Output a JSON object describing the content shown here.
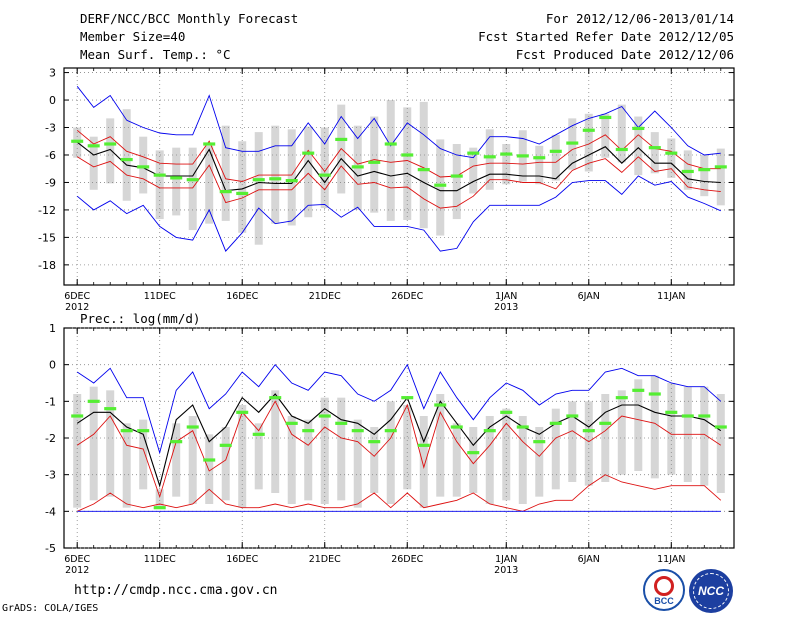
{
  "header": {
    "title": "DERF/NCC/BCC Monthly Forecast",
    "member_size": "Member Size=40",
    "variable": "Mean Surf. Temp.: °C",
    "for_period": "For 2012/12/06-2013/01/14",
    "fcst_started": "Fcst Started Refer Date 2012/12/05",
    "fcst_produced": "Fcst Produced Date 2012/12/06"
  },
  "footer": {
    "url": "http://cmdp.ncc.cma.gov.cn",
    "credit": "GrADS: COLA/IGES",
    "logo_left_text": "BCC",
    "logo_right_text": "NCC"
  },
  "colors": {
    "box": "#d6d6d6",
    "median": "#55ee33",
    "mean": "#000000",
    "inner": "#dd1111",
    "outer": "#0000ee"
  },
  "chart_data": [
    {
      "type": "line",
      "title": "Mean Surf. Temp.: °C",
      "x": [
        1,
        2,
        3,
        4,
        5,
        6,
        7,
        8,
        9,
        10,
        11,
        12,
        13,
        14,
        15,
        16,
        17,
        18,
        19,
        20,
        21,
        22,
        23,
        24,
        25,
        26,
        27,
        28,
        29,
        30,
        31,
        32,
        33,
        34,
        35,
        36,
        37,
        38,
        39,
        40
      ],
      "xlim": [
        0.2,
        40.8
      ],
      "ylim": [
        -20.2,
        3.5
      ],
      "yticks": [
        3,
        0,
        -3,
        -6,
        -9,
        -12,
        -15,
        -18
      ],
      "xticks": [
        {
          "x": 1,
          "label": "6DEC",
          "sub": "2012"
        },
        {
          "x": 6,
          "label": "11DEC",
          "sub": ""
        },
        {
          "x": 11,
          "label": "16DEC",
          "sub": ""
        },
        {
          "x": 16,
          "label": "21DEC",
          "sub": ""
        },
        {
          "x": 21,
          "label": "26DEC",
          "sub": ""
        },
        {
          "x": 27,
          "label": "1JAN",
          "sub": "2013"
        },
        {
          "x": 32,
          "label": "6JAN",
          "sub": ""
        },
        {
          "x": 37,
          "label": "11JAN",
          "sub": ""
        }
      ],
      "box_low": [
        -6.3,
        -9.8,
        -9.1,
        -11.0,
        -10.2,
        -13.0,
        -12.6,
        -14.2,
        -13.5,
        -13.2,
        -14.5,
        -15.8,
        -13.5,
        -13.7,
        -12.8,
        -11.8,
        -10.2,
        -12.0,
        -12.3,
        -13.2,
        -13.1,
        -14.0,
        -14.8,
        -13.0,
        -10.2,
        -9.8,
        -9.2,
        -8.9,
        -9.2,
        -8.8,
        -7.6,
        -7.8,
        -6.3,
        -6.8,
        -8.2,
        -8.0,
        -8.5,
        -9.8,
        -10.5,
        -11.5
      ],
      "box_high": [
        -3.0,
        -4.0,
        -2.0,
        -1.0,
        -4.0,
        -5.5,
        -5.2,
        -5.2,
        -5.0,
        -2.8,
        -4.5,
        -3.5,
        -2.8,
        -3.2,
        -2.9,
        -3.0,
        -0.5,
        -2.8,
        -1.8,
        0.0,
        -0.8,
        -0.2,
        -4.3,
        -4.8,
        -5.2,
        -3.2,
        -4.8,
        -3.3,
        -5.0,
        -3.8,
        -2.0,
        -1.5,
        -1.5,
        -0.5,
        -1.8,
        -3.5,
        -4.2,
        -5.5,
        -6.0,
        -5.3
      ],
      "median": [
        -4.5,
        -5.0,
        -4.8,
        -6.5,
        -7.3,
        -8.2,
        -8.5,
        -8.7,
        -4.8,
        -10.0,
        -10.2,
        -8.7,
        -8.6,
        -8.8,
        -5.8,
        -8.2,
        -4.3,
        -7.3,
        -6.8,
        -4.8,
        -6.0,
        -7.6,
        -9.3,
        -8.3,
        -5.8,
        -6.2,
        -5.9,
        -6.1,
        -6.3,
        -5.6,
        -4.7,
        -3.3,
        -1.9,
        -5.4,
        -3.1,
        -5.2,
        -5.8,
        -7.8,
        -7.6,
        -7.3
      ],
      "series": [
        {
          "name": "ensemble max",
          "color": "#0000ee",
          "values": [
            1.5,
            -0.8,
            0.5,
            -2.2,
            -3.0,
            -3.6,
            -3.8,
            -3.8,
            0.5,
            -5.2,
            -5.6,
            -5.6,
            -5.0,
            -5.0,
            -2.5,
            -4.8,
            -1.8,
            -4.2,
            -2.0,
            -5.0,
            -2.5,
            -3.8,
            -5.3,
            -6.0,
            -6.3,
            -4.0,
            -4.0,
            -4.2,
            -4.8,
            -3.8,
            -2.8,
            -2.0,
            -1.5,
            -0.7,
            -3.0,
            -1.2,
            -3.0,
            -5.0,
            -6.0,
            -5.8
          ]
        },
        {
          "name": "upper spread",
          "color": "#dd1111",
          "values": [
            -3.3,
            -4.8,
            -4.0,
            -5.6,
            -6.2,
            -6.9,
            -7.0,
            -7.0,
            -4.5,
            -8.6,
            -8.9,
            -8.2,
            -8.2,
            -8.2,
            -5.5,
            -7.8,
            -5.3,
            -7.0,
            -6.5,
            -6.8,
            -6.6,
            -7.4,
            -8.4,
            -8.3,
            -7.2,
            -6.9,
            -6.9,
            -7.0,
            -6.8,
            -6.8,
            -5.4,
            -4.8,
            -3.8,
            -5.5,
            -3.8,
            -5.3,
            -5.6,
            -7.0,
            -7.5,
            -7.5
          ]
        },
        {
          "name": "ensemble mean",
          "color": "#000000",
          "values": [
            -4.6,
            -6.0,
            -5.4,
            -7.1,
            -7.4,
            -8.3,
            -8.3,
            -8.3,
            -5.4,
            -9.9,
            -9.7,
            -9.0,
            -9.1,
            -9.1,
            -6.6,
            -9.0,
            -6.4,
            -8.3,
            -7.8,
            -8.3,
            -8.0,
            -9.0,
            -9.9,
            -9.9,
            -8.9,
            -8.1,
            -8.1,
            -8.3,
            -8.3,
            -8.6,
            -6.9,
            -6.0,
            -5.1,
            -6.9,
            -5.2,
            -6.9,
            -6.9,
            -8.6,
            -8.9,
            -9.0
          ]
        },
        {
          "name": "lower spread",
          "color": "#dd1111",
          "values": [
            -6.2,
            -7.3,
            -6.7,
            -8.2,
            -8.6,
            -9.6,
            -9.6,
            -9.6,
            -7.1,
            -11.2,
            -10.7,
            -9.8,
            -9.8,
            -9.8,
            -8.0,
            -9.8,
            -7.2,
            -9.2,
            -9.0,
            -9.6,
            -9.5,
            -10.8,
            -11.8,
            -11.6,
            -10.5,
            -8.7,
            -8.7,
            -9.0,
            -9.0,
            -9.7,
            -7.7,
            -6.9,
            -6.4,
            -7.9,
            -6.2,
            -7.8,
            -7.5,
            -9.5,
            -9.8,
            -10.0
          ]
        },
        {
          "name": "ensemble min",
          "color": "#0000ee",
          "values": [
            -10.5,
            -12.0,
            -11.0,
            -12.4,
            -11.5,
            -13.8,
            -15.0,
            -15.3,
            -12.0,
            -16.5,
            -14.5,
            -11.8,
            -13.5,
            -13.2,
            -11.5,
            -11.4,
            -12.8,
            -11.7,
            -13.8,
            -13.8,
            -13.8,
            -14.2,
            -16.5,
            -16.2,
            -13.3,
            -11.5,
            -11.5,
            -11.5,
            -11.5,
            -10.6,
            -9.0,
            -8.8,
            -8.8,
            -10.3,
            -8.3,
            -9.3,
            -8.9,
            -10.6,
            -11.3,
            -12.1
          ]
        }
      ]
    },
    {
      "type": "line",
      "title": "Prec.: log(mm/d)",
      "x": [
        1,
        2,
        3,
        4,
        5,
        6,
        7,
        8,
        9,
        10,
        11,
        12,
        13,
        14,
        15,
        16,
        17,
        18,
        19,
        20,
        21,
        22,
        23,
        24,
        25,
        26,
        27,
        28,
        29,
        30,
        31,
        32,
        33,
        34,
        35,
        36,
        37,
        38,
        39,
        40
      ],
      "xlim": [
        0.2,
        40.8
      ],
      "ylim": [
        -5,
        1
      ],
      "yticks": [
        1,
        0,
        -1,
        -2,
        -3,
        -4,
        -5
      ],
      "xticks": [
        {
          "x": 1,
          "label": "6DEC",
          "sub": "2012"
        },
        {
          "x": 6,
          "label": "11DEC",
          "sub": ""
        },
        {
          "x": 11,
          "label": "16DEC",
          "sub": ""
        },
        {
          "x": 16,
          "label": "21DEC",
          "sub": ""
        },
        {
          "x": 21,
          "label": "26DEC",
          "sub": ""
        },
        {
          "x": 27,
          "label": "1JAN",
          "sub": "2013"
        },
        {
          "x": 32,
          "label": "6JAN",
          "sub": ""
        },
        {
          "x": 37,
          "label": "11JAN",
          "sub": ""
        }
      ],
      "box_low": [
        -3.9,
        -3.7,
        -3.6,
        -3.9,
        -3.4,
        -3.9,
        -3.6,
        -3.8,
        -3.8,
        -3.7,
        -3.9,
        -3.4,
        -3.5,
        -3.8,
        -3.7,
        -3.8,
        -3.7,
        -3.9,
        -3.5,
        -3.8,
        -3.4,
        -3.9,
        -3.6,
        -3.6,
        -3.5,
        -3.8,
        -3.7,
        -3.8,
        -3.6,
        -3.4,
        -3.2,
        -3.3,
        -3.2,
        -3.0,
        -2.9,
        -3.1,
        -3.0,
        -3.2,
        -3.3,
        -3.5
      ],
      "box_high": [
        -0.8,
        -0.6,
        -0.7,
        -1.6,
        -1.5,
        -3.4,
        -1.6,
        -1.4,
        -1.9,
        -1.7,
        -1.1,
        -1.6,
        -0.7,
        -1.4,
        -1.5,
        -0.9,
        -0.9,
        -1.5,
        -1.7,
        -1.0,
        -1.1,
        -1.4,
        -0.8,
        -1.6,
        -1.7,
        -1.4,
        -1.2,
        -1.4,
        -1.7,
        -1.2,
        -1.0,
        -1.0,
        -0.8,
        -0.7,
        -0.4,
        -0.3,
        -0.5,
        -0.6,
        -0.6,
        -0.8
      ],
      "median": [
        -1.4,
        -1.0,
        -1.2,
        -1.8,
        -1.8,
        -3.9,
        -2.1,
        -1.7,
        -2.6,
        -2.2,
        -1.3,
        -1.9,
        -0.9,
        -1.6,
        -1.8,
        -1.4,
        -1.6,
        -1.8,
        -2.1,
        -1.8,
        -0.9,
        -2.2,
        -1.1,
        -1.7,
        -2.4,
        -1.8,
        -1.3,
        -1.7,
        -2.1,
        -1.6,
        -1.4,
        -1.8,
        -1.6,
        -0.9,
        -0.7,
        -0.8,
        -1.3,
        -1.4,
        -1.4,
        -1.7
      ],
      "series": [
        {
          "name": "ensemble max",
          "color": "#0000ee",
          "values": [
            -0.2,
            -0.5,
            -0.1,
            -0.9,
            -0.9,
            -2.4,
            -0.7,
            -0.2,
            -1.2,
            -0.8,
            -0.2,
            -0.6,
            0.0,
            -0.5,
            -0.7,
            -0.2,
            -0.3,
            -0.8,
            -1.0,
            -0.7,
            0.0,
            -1.2,
            -0.2,
            -0.9,
            -1.5,
            -0.9,
            -0.5,
            -0.7,
            -1.1,
            -0.8,
            -0.7,
            -0.7,
            -0.2,
            -0.1,
            -0.3,
            -0.3,
            -0.5,
            -0.6,
            -0.6,
            -1.0
          ]
        },
        {
          "name": "upper spread",
          "color": "#dd1111",
          "values": [
            -2.2,
            -1.9,
            -1.4,
            -2.2,
            -2.3,
            -3.6,
            -2.1,
            -1.8,
            -2.9,
            -2.6,
            -1.3,
            -1.8,
            -1.0,
            -1.9,
            -2.2,
            -1.7,
            -2.0,
            -2.1,
            -2.5,
            -2.0,
            -1.1,
            -2.8,
            -1.3,
            -2.1,
            -2.7,
            -2.2,
            -1.6,
            -2.1,
            -2.5,
            -2.0,
            -1.8,
            -2.1,
            -1.8,
            -1.4,
            -1.5,
            -1.6,
            -1.9,
            -1.9,
            -1.9,
            -2.2
          ]
        },
        {
          "name": "ensemble mean",
          "color": "#000000",
          "values": [
            -1.6,
            -1.3,
            -1.3,
            -1.7,
            -1.9,
            -3.3,
            -1.5,
            -1.1,
            -2.1,
            -1.7,
            -0.9,
            -1.3,
            -0.8,
            -1.4,
            -1.6,
            -1.2,
            -1.5,
            -1.6,
            -1.9,
            -1.5,
            -0.9,
            -2.1,
            -1.0,
            -1.6,
            -2.2,
            -1.7,
            -1.4,
            -1.7,
            -1.9,
            -1.6,
            -1.4,
            -1.7,
            -1.3,
            -1.1,
            -1.1,
            -1.3,
            -1.4,
            -1.4,
            -1.5,
            -1.8
          ]
        },
        {
          "name": "lower spread",
          "color": "#dd1111",
          "values": [
            -4.0,
            -3.8,
            -3.5,
            -3.8,
            -3.9,
            -3.8,
            -3.9,
            -3.8,
            -3.4,
            -3.8,
            -3.9,
            -3.9,
            -3.8,
            -3.9,
            -3.8,
            -3.9,
            -3.9,
            -3.8,
            -3.5,
            -3.9,
            -3.5,
            -3.9,
            -3.8,
            -3.7,
            -3.5,
            -3.8,
            -3.9,
            -4.0,
            -3.8,
            -3.7,
            -3.7,
            -3.3,
            -3.0,
            -3.2,
            -3.3,
            -3.4,
            -3.3,
            -3.3,
            -3.3,
            -3.7
          ]
        },
        {
          "name": "ensemble min",
          "color": "#0000ee",
          "values": [
            -4.0,
            -4.0,
            -4.0,
            -4.0,
            -4.0,
            -4.0,
            -4.0,
            -4.0,
            -4.0,
            -4.0,
            -4.0,
            -4.0,
            -4.0,
            -4.0,
            -4.0,
            -4.0,
            -4.0,
            -4.0,
            -4.0,
            -4.0,
            -4.0,
            -4.0,
            -4.0,
            -4.0,
            -4.0,
            -4.0,
            -4.0,
            -4.0,
            -4.0,
            -4.0,
            -4.0,
            -4.0,
            -4.0,
            -4.0,
            -4.0,
            -4.0,
            -4.0,
            -4.0,
            -4.0,
            -4.0
          ]
        }
      ]
    }
  ]
}
